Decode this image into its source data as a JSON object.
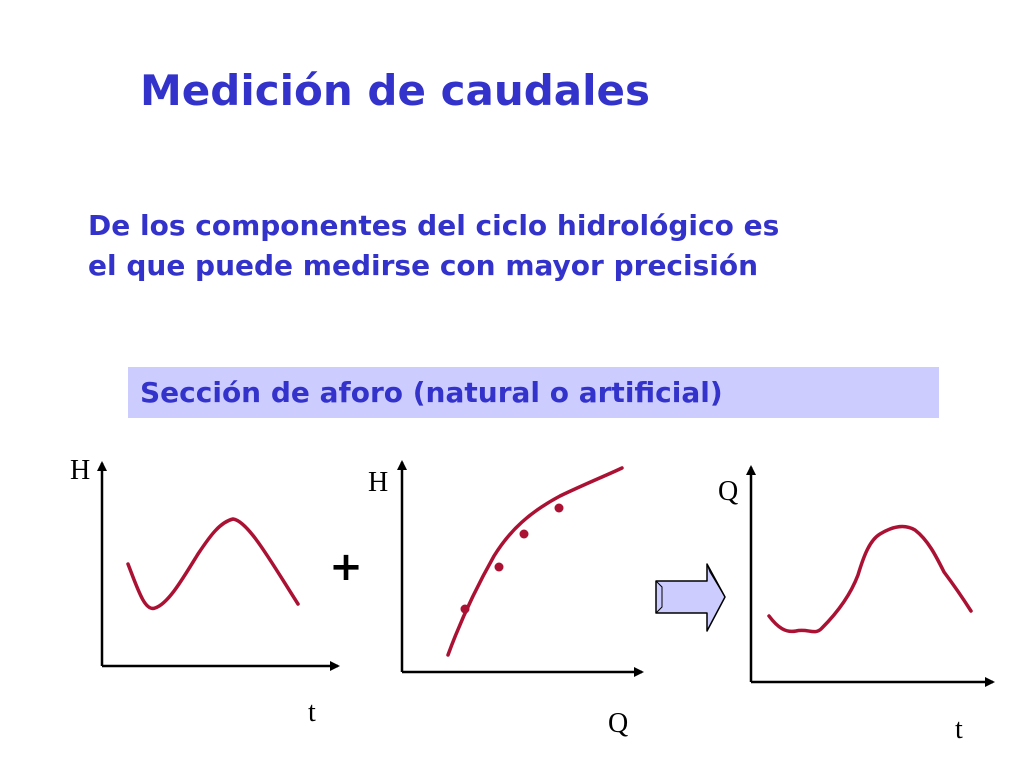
{
  "slide": {
    "title": "Medición de caudales",
    "subtitle_line1": "De los componentes del ciclo hidrológico es",
    "subtitle_line2": "el que puede medirse con mayor precisión",
    "section_label": "Sección de aforo (natural o artificial)"
  },
  "graphs": {
    "left": {
      "y_label": "H",
      "x_label": "t"
    },
    "middle": {
      "y_label": "H",
      "x_label": "Q"
    },
    "right": {
      "y_label": "Q",
      "x_label": "t"
    }
  },
  "operators": {
    "plus": "+"
  },
  "colors": {
    "heading": "#3333cc",
    "box": "#ccccff",
    "curve": "#aa1133",
    "arrow": "#ccccff"
  },
  "icons": {
    "arrow": "right-arrow-icon"
  }
}
